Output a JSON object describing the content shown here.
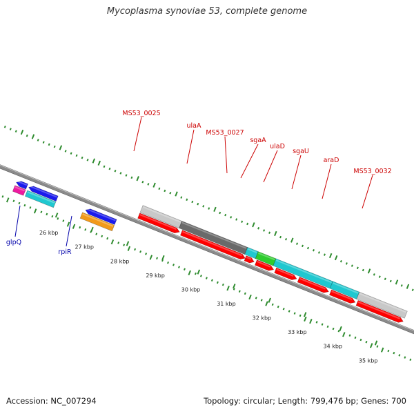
{
  "title": "Mycoplasma synoviae 53, complete genome",
  "footer": {
    "accession": "Accession: NC_007294",
    "summary": "Topology: circular; Length: 799,476 bp; Genes: 700"
  },
  "colors": {
    "backbone": "#8a8a8a",
    "forward_label": "#cc0000",
    "reverse_label": "#0000aa",
    "gc_ticks": "#2e8b2e",
    "cds": "#ff0000",
    "blast_light_gray": "#c8c8c8",
    "blast_dark_gray": "#6a6a6a",
    "blast_cyan": "#20c8d0",
    "blast_green": "#2ecc2e",
    "blast_blue": "#1a1aee",
    "blast_magenta": "#ee1aa0",
    "blast_orange": "#f29a1a"
  },
  "scale": {
    "labels": [
      "26 kbp",
      "27 kbp",
      "28 kbp",
      "29 kbp",
      "30 kbp",
      "31 kbp",
      "32 kbp",
      "33 kbp",
      "34 kbp",
      "35 kbp"
    ]
  },
  "genes": {
    "forward": [
      {
        "name": "MS53_0025"
      },
      {
        "name": "ulaA"
      },
      {
        "name": "MS53_0027"
      },
      {
        "name": "sgaA"
      },
      {
        "name": "ulaD"
      },
      {
        "name": "sgaU"
      },
      {
        "name": "araD"
      },
      {
        "name": "MS53_0032"
      }
    ],
    "reverse": [
      {
        "name": "glpQ"
      },
      {
        "name": "rpiR"
      }
    ]
  },
  "feature_tracks": [
    {
      "track": "forward-cds",
      "start_kbp": 28.0,
      "end_kbp": 29.15,
      "strand": "+",
      "color": "cds"
    },
    {
      "track": "forward-cds",
      "start_kbp": 29.2,
      "end_kbp": 31.0,
      "strand": "+",
      "color": "cds"
    },
    {
      "track": "forward-cds",
      "start_kbp": 31.0,
      "end_kbp": 31.25,
      "strand": "+",
      "color": "cds"
    },
    {
      "track": "forward-cds",
      "start_kbp": 31.3,
      "end_kbp": 31.8,
      "strand": "+",
      "color": "cds"
    },
    {
      "track": "forward-cds",
      "start_kbp": 31.85,
      "end_kbp": 32.45,
      "strand": "+",
      "color": "cds"
    },
    {
      "track": "forward-cds",
      "start_kbp": 32.5,
      "end_kbp": 33.35,
      "strand": "+",
      "color": "cds"
    },
    {
      "track": "forward-cds",
      "start_kbp": 33.4,
      "end_kbp": 34.1,
      "strand": "+",
      "color": "cds"
    },
    {
      "track": "forward-cds",
      "start_kbp": 34.15,
      "end_kbp": 35.45,
      "strand": "+",
      "color": "cds"
    },
    {
      "track": "forward-blast",
      "start_kbp": 28.0,
      "end_kbp": 29.1,
      "color": "blast_light_gray"
    },
    {
      "track": "forward-blast",
      "start_kbp": 29.1,
      "end_kbp": 30.95,
      "color": "blast_dark_gray"
    },
    {
      "track": "forward-blast",
      "start_kbp": 30.95,
      "end_kbp": 31.25,
      "color": "blast_cyan"
    },
    {
      "track": "forward-blast",
      "start_kbp": 31.25,
      "end_kbp": 31.75,
      "color": "blast_green"
    },
    {
      "track": "forward-blast",
      "start_kbp": 31.75,
      "end_kbp": 33.35,
      "color": "blast_cyan"
    },
    {
      "track": "forward-blast",
      "start_kbp": 33.35,
      "end_kbp": 34.1,
      "color": "blast_cyan"
    },
    {
      "track": "forward-blast",
      "start_kbp": 34.1,
      "end_kbp": 35.45,
      "color": "blast_light_gray"
    },
    {
      "track": "reverse-1",
      "start_kbp": 24.7,
      "end_kbp": 25.0,
      "strand": "-",
      "color": "blast_blue"
    },
    {
      "track": "reverse-1",
      "start_kbp": 25.05,
      "end_kbp": 25.85,
      "strand": "-",
      "color": "blast_blue"
    },
    {
      "track": "reverse-1",
      "start_kbp": 26.65,
      "end_kbp": 27.5,
      "strand": "-",
      "color": "blast_blue"
    },
    {
      "track": "reverse-2",
      "start_kbp": 24.7,
      "end_kbp": 25.0,
      "color": "blast_magenta"
    },
    {
      "track": "reverse-2",
      "start_kbp": 25.05,
      "end_kbp": 25.85,
      "color": "blast_cyan"
    },
    {
      "track": "reverse-2",
      "start_kbp": 26.6,
      "end_kbp": 27.5,
      "color": "blast_orange"
    }
  ]
}
